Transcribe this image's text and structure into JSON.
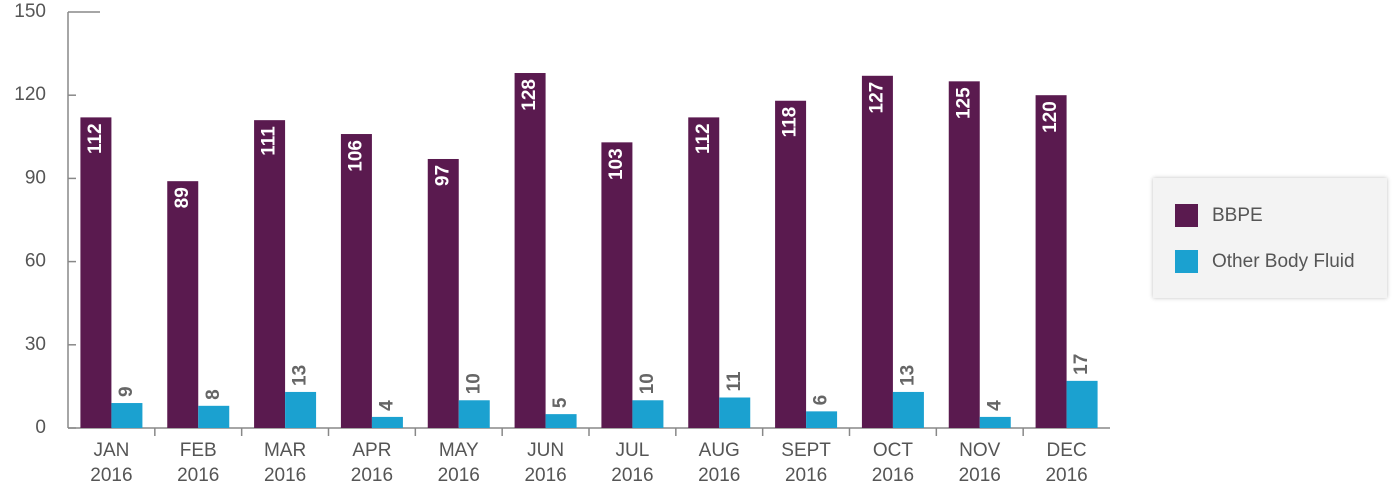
{
  "chart_data": {
    "type": "bar",
    "categories": [
      "JAN 2016",
      "FEB 2016",
      "MAR 2016",
      "APR 2016",
      "MAY 2016",
      "JUN 2016",
      "JUL 2016",
      "AUG 2016",
      "SEPT 2016",
      "OCT 2016",
      "NOV 2016",
      "DEC 2016"
    ],
    "series": [
      {
        "name": "BBPE",
        "color": "#5a1a4f",
        "values": [
          112,
          89,
          111,
          106,
          97,
          128,
          103,
          112,
          118,
          127,
          125,
          120
        ]
      },
      {
        "name": "Other Body Fluid",
        "color": "#1ba1d0",
        "values": [
          9,
          8,
          13,
          4,
          10,
          5,
          10,
          11,
          6,
          13,
          4,
          17
        ]
      }
    ],
    "ylim": [
      0,
      150
    ],
    "yticks": [
      0,
      30,
      60,
      90,
      120,
      150
    ],
    "legend": "right"
  }
}
